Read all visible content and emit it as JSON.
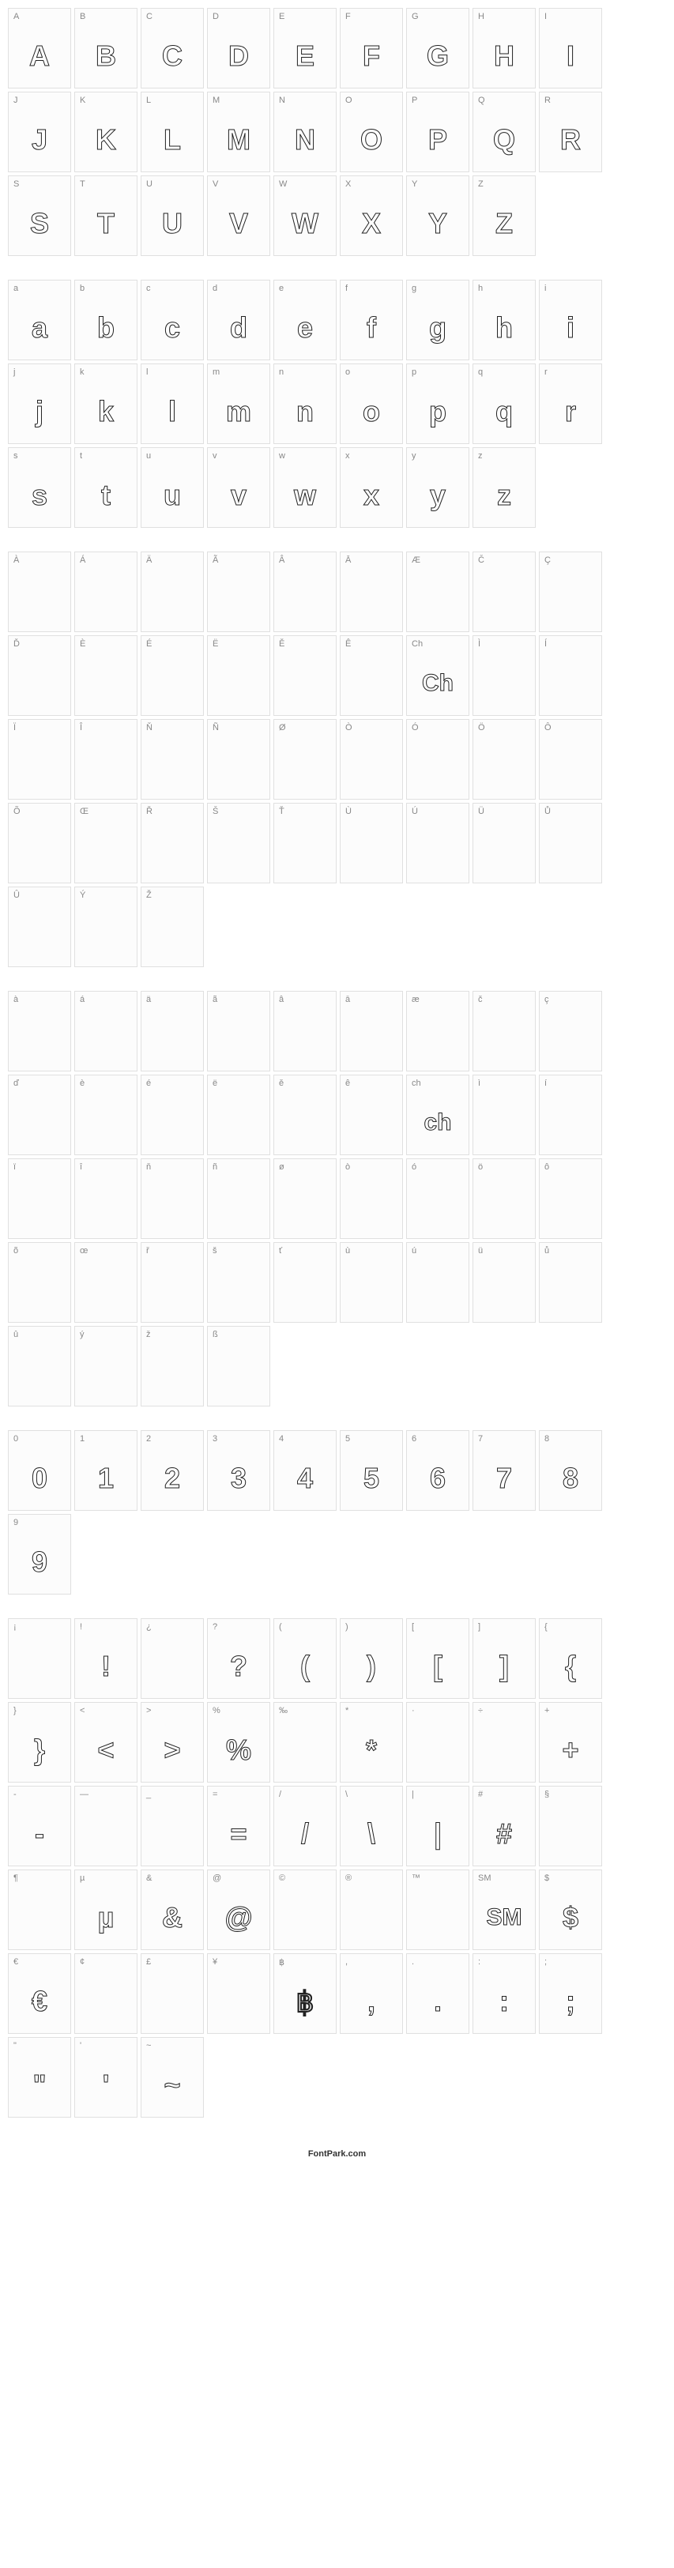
{
  "footer": "FontPark.com",
  "card_style": {
    "width": 78,
    "height": 100,
    "border_color": "#e0e0e0",
    "background": "#fcfcfc",
    "label_color": "#888",
    "label_fontsize": 11,
    "glyph_fontsize": 36,
    "glyph_stroke": "#222",
    "glyph_fill": "#ffffff"
  },
  "sections": [
    {
      "name": "uppercase",
      "chars": [
        {
          "label": "A",
          "glyph": "A"
        },
        {
          "label": "B",
          "glyph": "B"
        },
        {
          "label": "C",
          "glyph": "C"
        },
        {
          "label": "D",
          "glyph": "D"
        },
        {
          "label": "E",
          "glyph": "E"
        },
        {
          "label": "F",
          "glyph": "F"
        },
        {
          "label": "G",
          "glyph": "G"
        },
        {
          "label": "H",
          "glyph": "H"
        },
        {
          "label": "I",
          "glyph": "I"
        },
        {
          "label": "J",
          "glyph": "J"
        },
        {
          "label": "K",
          "glyph": "K"
        },
        {
          "label": "L",
          "glyph": "L"
        },
        {
          "label": "M",
          "glyph": "M"
        },
        {
          "label": "N",
          "glyph": "N"
        },
        {
          "label": "O",
          "glyph": "O"
        },
        {
          "label": "P",
          "glyph": "P"
        },
        {
          "label": "Q",
          "glyph": "Q"
        },
        {
          "label": "R",
          "glyph": "R"
        },
        {
          "label": "S",
          "glyph": "S"
        },
        {
          "label": "T",
          "glyph": "T"
        },
        {
          "label": "U",
          "glyph": "U"
        },
        {
          "label": "V",
          "glyph": "V"
        },
        {
          "label": "W",
          "glyph": "W"
        },
        {
          "label": "X",
          "glyph": "X"
        },
        {
          "label": "Y",
          "glyph": "Y"
        },
        {
          "label": "Z",
          "glyph": "Z"
        }
      ]
    },
    {
      "name": "lowercase",
      "chars": [
        {
          "label": "a",
          "glyph": "a"
        },
        {
          "label": "b",
          "glyph": "b"
        },
        {
          "label": "c",
          "glyph": "c"
        },
        {
          "label": "d",
          "glyph": "d"
        },
        {
          "label": "e",
          "glyph": "e"
        },
        {
          "label": "f",
          "glyph": "f"
        },
        {
          "label": "g",
          "glyph": "g"
        },
        {
          "label": "h",
          "glyph": "h"
        },
        {
          "label": "i",
          "glyph": "i"
        },
        {
          "label": "j",
          "glyph": "j"
        },
        {
          "label": "k",
          "glyph": "k"
        },
        {
          "label": "l",
          "glyph": "l"
        },
        {
          "label": "m",
          "glyph": "m"
        },
        {
          "label": "n",
          "glyph": "n"
        },
        {
          "label": "o",
          "glyph": "o"
        },
        {
          "label": "p",
          "glyph": "p"
        },
        {
          "label": "q",
          "glyph": "q"
        },
        {
          "label": "r",
          "glyph": "r"
        },
        {
          "label": "s",
          "glyph": "s"
        },
        {
          "label": "t",
          "glyph": "t"
        },
        {
          "label": "u",
          "glyph": "u"
        },
        {
          "label": "v",
          "glyph": "v"
        },
        {
          "label": "w",
          "glyph": "w"
        },
        {
          "label": "x",
          "glyph": "x"
        },
        {
          "label": "y",
          "glyph": "y"
        },
        {
          "label": "z",
          "glyph": "z"
        }
      ]
    },
    {
      "name": "extended-upper",
      "chars": [
        {
          "label": "À",
          "glyph": ""
        },
        {
          "label": "Á",
          "glyph": ""
        },
        {
          "label": "Ä",
          "glyph": ""
        },
        {
          "label": "Ã",
          "glyph": ""
        },
        {
          "label": "Â",
          "glyph": ""
        },
        {
          "label": "Ā",
          "glyph": ""
        },
        {
          "label": "Æ",
          "glyph": ""
        },
        {
          "label": "Č",
          "glyph": ""
        },
        {
          "label": "Ç",
          "glyph": ""
        },
        {
          "label": "Ď",
          "glyph": ""
        },
        {
          "label": "È",
          "glyph": ""
        },
        {
          "label": "É",
          "glyph": ""
        },
        {
          "label": "Ë",
          "glyph": ""
        },
        {
          "label": "Ě",
          "glyph": ""
        },
        {
          "label": "Ê",
          "glyph": ""
        },
        {
          "label": "Ch",
          "glyph": "Ch"
        },
        {
          "label": "Ì",
          "glyph": ""
        },
        {
          "label": "Í",
          "glyph": ""
        },
        {
          "label": "Ï",
          "glyph": ""
        },
        {
          "label": "Î",
          "glyph": ""
        },
        {
          "label": "Ň",
          "glyph": ""
        },
        {
          "label": "Ñ",
          "glyph": ""
        },
        {
          "label": "Ø",
          "glyph": ""
        },
        {
          "label": "Ò",
          "glyph": ""
        },
        {
          "label": "Ó",
          "glyph": ""
        },
        {
          "label": "Ö",
          "glyph": ""
        },
        {
          "label": "Ô",
          "glyph": ""
        },
        {
          "label": "Õ",
          "glyph": ""
        },
        {
          "label": "Œ",
          "glyph": ""
        },
        {
          "label": "Ř",
          "glyph": ""
        },
        {
          "label": "Š",
          "glyph": ""
        },
        {
          "label": "Ť",
          "glyph": ""
        },
        {
          "label": "Ù",
          "glyph": ""
        },
        {
          "label": "Ú",
          "glyph": ""
        },
        {
          "label": "Ü",
          "glyph": ""
        },
        {
          "label": "Ů",
          "glyph": ""
        },
        {
          "label": "Û",
          "glyph": ""
        },
        {
          "label": "Ý",
          "glyph": ""
        },
        {
          "label": "Ž",
          "glyph": ""
        }
      ]
    },
    {
      "name": "extended-lower",
      "chars": [
        {
          "label": "à",
          "glyph": ""
        },
        {
          "label": "á",
          "glyph": ""
        },
        {
          "label": "ä",
          "glyph": ""
        },
        {
          "label": "ã",
          "glyph": ""
        },
        {
          "label": "â",
          "glyph": ""
        },
        {
          "label": "ā",
          "glyph": ""
        },
        {
          "label": "æ",
          "glyph": ""
        },
        {
          "label": "č",
          "glyph": ""
        },
        {
          "label": "ç",
          "glyph": ""
        },
        {
          "label": "ď",
          "glyph": ""
        },
        {
          "label": "è",
          "glyph": ""
        },
        {
          "label": "é",
          "glyph": ""
        },
        {
          "label": "ë",
          "glyph": ""
        },
        {
          "label": "ě",
          "glyph": ""
        },
        {
          "label": "ê",
          "glyph": ""
        },
        {
          "label": "ch",
          "glyph": "ch"
        },
        {
          "label": "ì",
          "glyph": ""
        },
        {
          "label": "í",
          "glyph": ""
        },
        {
          "label": "ï",
          "glyph": ""
        },
        {
          "label": "î",
          "glyph": ""
        },
        {
          "label": "ň",
          "glyph": ""
        },
        {
          "label": "ñ",
          "glyph": ""
        },
        {
          "label": "ø",
          "glyph": ""
        },
        {
          "label": "ò",
          "glyph": ""
        },
        {
          "label": "ó",
          "glyph": ""
        },
        {
          "label": "ö",
          "glyph": ""
        },
        {
          "label": "ô",
          "glyph": ""
        },
        {
          "label": "õ",
          "glyph": ""
        },
        {
          "label": "œ",
          "glyph": ""
        },
        {
          "label": "ř",
          "glyph": ""
        },
        {
          "label": "š",
          "glyph": ""
        },
        {
          "label": "ť",
          "glyph": ""
        },
        {
          "label": "ù",
          "glyph": ""
        },
        {
          "label": "ú",
          "glyph": ""
        },
        {
          "label": "ü",
          "glyph": ""
        },
        {
          "label": "ů",
          "glyph": ""
        },
        {
          "label": "û",
          "glyph": ""
        },
        {
          "label": "ý",
          "glyph": ""
        },
        {
          "label": "ž",
          "glyph": ""
        },
        {
          "label": "ß",
          "glyph": ""
        }
      ]
    },
    {
      "name": "digits",
      "chars": [
        {
          "label": "0",
          "glyph": "0"
        },
        {
          "label": "1",
          "glyph": "1"
        },
        {
          "label": "2",
          "glyph": "2"
        },
        {
          "label": "3",
          "glyph": "3"
        },
        {
          "label": "4",
          "glyph": "4"
        },
        {
          "label": "5",
          "glyph": "5"
        },
        {
          "label": "6",
          "glyph": "6"
        },
        {
          "label": "7",
          "glyph": "7"
        },
        {
          "label": "8",
          "glyph": "8"
        },
        {
          "label": "9",
          "glyph": "9"
        }
      ]
    },
    {
      "name": "symbols",
      "chars": [
        {
          "label": "¡",
          "glyph": ""
        },
        {
          "label": "!",
          "glyph": "!"
        },
        {
          "label": "¿",
          "glyph": ""
        },
        {
          "label": "?",
          "glyph": "?"
        },
        {
          "label": "(",
          "glyph": "("
        },
        {
          "label": ")",
          "glyph": ")"
        },
        {
          "label": "[",
          "glyph": "["
        },
        {
          "label": "]",
          "glyph": "]"
        },
        {
          "label": "{",
          "glyph": "{"
        },
        {
          "label": "}",
          "glyph": "}"
        },
        {
          "label": "<",
          "glyph": "<"
        },
        {
          "label": ">",
          "glyph": ">"
        },
        {
          "label": "%",
          "glyph": "%"
        },
        {
          "label": "‰",
          "glyph": ""
        },
        {
          "label": "*",
          "glyph": "*"
        },
        {
          "label": "·",
          "glyph": ""
        },
        {
          "label": "÷",
          "glyph": ""
        },
        {
          "label": "+",
          "glyph": "+"
        },
        {
          "label": "-",
          "glyph": "-"
        },
        {
          "label": "—",
          "glyph": ""
        },
        {
          "label": "_",
          "glyph": ""
        },
        {
          "label": "=",
          "glyph": "="
        },
        {
          "label": "/",
          "glyph": "/"
        },
        {
          "label": "\\",
          "glyph": "\\"
        },
        {
          "label": "|",
          "glyph": "|"
        },
        {
          "label": "#",
          "glyph": "#"
        },
        {
          "label": "§",
          "glyph": ""
        },
        {
          "label": "¶",
          "glyph": ""
        },
        {
          "label": "µ",
          "glyph": "µ"
        },
        {
          "label": "&",
          "glyph": "&"
        },
        {
          "label": "@",
          "glyph": "@"
        },
        {
          "label": "©",
          "glyph": ""
        },
        {
          "label": "®",
          "glyph": ""
        },
        {
          "label": "™",
          "glyph": ""
        },
        {
          "label": "SM",
          "glyph": "SM"
        },
        {
          "label": "$",
          "glyph": "$"
        },
        {
          "label": "€",
          "glyph": "€"
        },
        {
          "label": "¢",
          "glyph": ""
        },
        {
          "label": "£",
          "glyph": ""
        },
        {
          "label": "¥",
          "glyph": ""
        },
        {
          "label": "฿",
          "glyph": "฿"
        },
        {
          "label": ",",
          "glyph": ","
        },
        {
          "label": ".",
          "glyph": "."
        },
        {
          "label": ":",
          "glyph": ":"
        },
        {
          "label": ";",
          "glyph": ";"
        },
        {
          "label": "\"",
          "glyph": "\""
        },
        {
          "label": "'",
          "glyph": "'"
        },
        {
          "label": "~",
          "glyph": "~"
        }
      ]
    }
  ]
}
